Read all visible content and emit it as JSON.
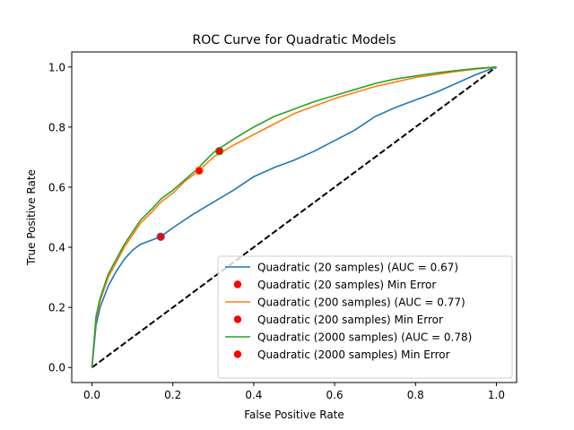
{
  "chart_data": {
    "type": "line",
    "title": "ROC Curve for Quadratic Models",
    "xlabel": "False Positive Rate",
    "ylabel": "True Positive Rate",
    "xlim": [
      -0.05,
      1.05
    ],
    "ylim": [
      -0.05,
      1.05
    ],
    "xticks": [
      "0.0",
      "0.2",
      "0.4",
      "0.6",
      "0.8",
      "1.0"
    ],
    "yticks": [
      "0.0",
      "0.2",
      "0.4",
      "0.6",
      "0.8",
      "1.0"
    ],
    "grid": false,
    "legend_position": "lower-right",
    "series": [
      {
        "name": "Quadratic (20 samples) (AUC = 0.67)",
        "color": "#1f77b4",
        "kind": "line",
        "x": [
          0.0,
          0.01,
          0.02,
          0.04,
          0.06,
          0.08,
          0.1,
          0.12,
          0.15,
          0.17,
          0.2,
          0.25,
          0.3,
          0.35,
          0.4,
          0.45,
          0.5,
          0.55,
          0.6,
          0.65,
          0.7,
          0.75,
          0.8,
          0.85,
          0.9,
          0.95,
          1.0
        ],
        "y": [
          0.0,
          0.14,
          0.2,
          0.27,
          0.32,
          0.36,
          0.39,
          0.41,
          0.425,
          0.435,
          0.465,
          0.51,
          0.55,
          0.59,
          0.635,
          0.665,
          0.69,
          0.72,
          0.755,
          0.79,
          0.835,
          0.865,
          0.89,
          0.915,
          0.945,
          0.975,
          1.0
        ]
      },
      {
        "name": "Quadratic (20 samples) Min Error",
        "color": "#ff0000",
        "edge": "#1f77b4",
        "kind": "point",
        "x": [
          0.17
        ],
        "y": [
          0.435
        ]
      },
      {
        "name": "Quadratic (200 samples) (AUC = 0.77)",
        "color": "#ff7f0e",
        "kind": "line",
        "x": [
          0.0,
          0.01,
          0.02,
          0.04,
          0.06,
          0.08,
          0.1,
          0.12,
          0.15,
          0.17,
          0.2,
          0.23,
          0.26,
          0.3,
          0.35,
          0.4,
          0.45,
          0.5,
          0.55,
          0.6,
          0.65,
          0.7,
          0.75,
          0.8,
          0.85,
          0.9,
          0.95,
          1.0
        ],
        "y": [
          0.0,
          0.16,
          0.22,
          0.3,
          0.35,
          0.4,
          0.44,
          0.48,
          0.52,
          0.55,
          0.58,
          0.62,
          0.65,
          0.7,
          0.74,
          0.775,
          0.81,
          0.845,
          0.87,
          0.895,
          0.915,
          0.935,
          0.95,
          0.965,
          0.975,
          0.985,
          0.993,
          1.0
        ]
      },
      {
        "name": "Quadratic (200 samples) Min Error",
        "color": "#ff0000",
        "edge": "#ff7f0e",
        "kind": "point",
        "x": [
          0.265
        ],
        "y": [
          0.655
        ]
      },
      {
        "name": "Quadratic (2000 samples) (AUC = 0.78)",
        "color": "#2ca02c",
        "kind": "line",
        "x": [
          0.0,
          0.01,
          0.02,
          0.04,
          0.06,
          0.08,
          0.1,
          0.12,
          0.15,
          0.17,
          0.2,
          0.23,
          0.26,
          0.3,
          0.35,
          0.4,
          0.45,
          0.5,
          0.55,
          0.6,
          0.65,
          0.7,
          0.75,
          0.8,
          0.85,
          0.9,
          0.95,
          1.0
        ],
        "y": [
          0.0,
          0.17,
          0.23,
          0.31,
          0.36,
          0.41,
          0.45,
          0.49,
          0.53,
          0.56,
          0.59,
          0.625,
          0.66,
          0.715,
          0.76,
          0.8,
          0.835,
          0.86,
          0.885,
          0.905,
          0.925,
          0.945,
          0.96,
          0.97,
          0.98,
          0.988,
          0.995,
          1.0
        ]
      },
      {
        "name": "Quadratic (2000 samples) Min Error",
        "color": "#ff0000",
        "edge": "#2ca02c",
        "kind": "point",
        "x": [
          0.315
        ],
        "y": [
          0.72
        ]
      }
    ],
    "reference_line": {
      "x": [
        0,
        1
      ],
      "y": [
        0,
        1
      ],
      "color": "#000000",
      "style": "dashed"
    }
  }
}
